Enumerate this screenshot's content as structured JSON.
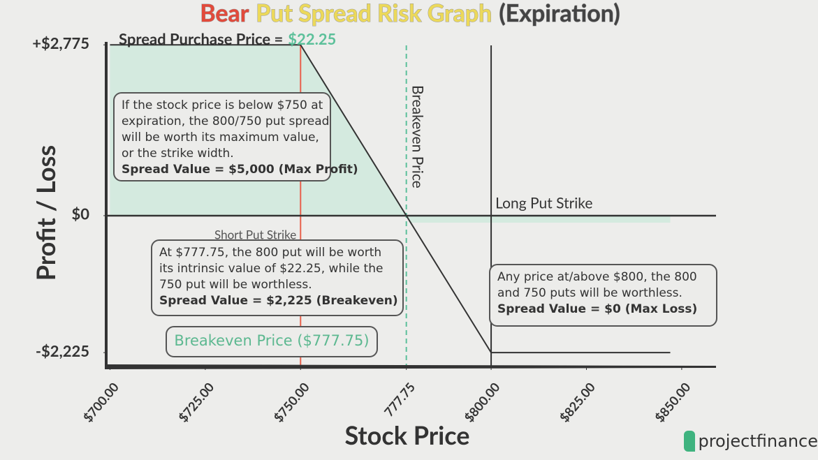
{
  "chart_data": {
    "type": "line",
    "title_parts": [
      {
        "text": "Bear",
        "color": "#e24a3b"
      },
      {
        "text": "Put Spread Risk Graph",
        "color": "#ecd95a"
      },
      {
        "text": "(Expiration)",
        "color": "#444444"
      }
    ],
    "subtitle_parts": [
      {
        "text": "Spread Purchase Price =",
        "color": "#333333"
      },
      {
        "text": "$22.25",
        "color": "#5cc09a"
      }
    ],
    "xlabel": "Stock Price",
    "ylabel": "Profit / Loss",
    "x": [
      700,
      750,
      800,
      847
    ],
    "series": [
      {
        "name": "Bear Put Spread",
        "color": "#333333",
        "values": [
          2775,
          2775,
          -2225,
          -2225
        ]
      }
    ],
    "xlim": [
      699,
      859
    ],
    "ylim": [
      -2450,
      3050
    ],
    "xticks": [
      {
        "value": 700,
        "label": "$700.00"
      },
      {
        "value": 725,
        "label": "$725.00"
      },
      {
        "value": 750,
        "label": "$750.00"
      },
      777.75,
      {
        "value": 800,
        "label": "$800.00"
      },
      {
        "value": 825,
        "label": "$825.00"
      },
      {
        "value": 850,
        "label": "$850.00"
      }
    ],
    "yticks": [
      {
        "value": 2775,
        "label": "+$2,775"
      },
      {
        "value": 0,
        "label": "$0"
      },
      {
        "value": -2225,
        "label": "-$2,225"
      }
    ],
    "profit_fill": "#d4eadf",
    "reference_lines": [
      {
        "x": 750,
        "label": "Short Put Strike",
        "color": "#e8604c",
        "dashed": false
      },
      {
        "x": 777.75,
        "label": "Breakeven Price",
        "color": "#5cc09a",
        "dashed": true
      },
      {
        "x": 800,
        "label": "Long Put Strike",
        "color": "#333333",
        "dashed": false
      }
    ],
    "annotations": [
      {
        "lines": [
          "If the stock price is below $750 at",
          "expiration, the 800/750 put spread",
          "will be worth its maximum value,",
          "or the strike width."
        ],
        "bold": "Spread Value = $5,000 (Max Profit)"
      },
      {
        "lines": [
          "At $777.75, the 800 put will be worth",
          "its intrinsic value of $22.25, while the",
          "750 put will be worthless."
        ],
        "bold": "Spread Value = $2,225 (Breakeven)"
      },
      {
        "lines": [
          "Breakeven Price ($777.75)"
        ]
      },
      {
        "lines": [
          "Any price at/above $800, the 800",
          "and 750 puts will be worthless."
        ],
        "bold": "Spread Value = $0 (Max Loss)"
      }
    ],
    "brand": "projectfinance"
  }
}
